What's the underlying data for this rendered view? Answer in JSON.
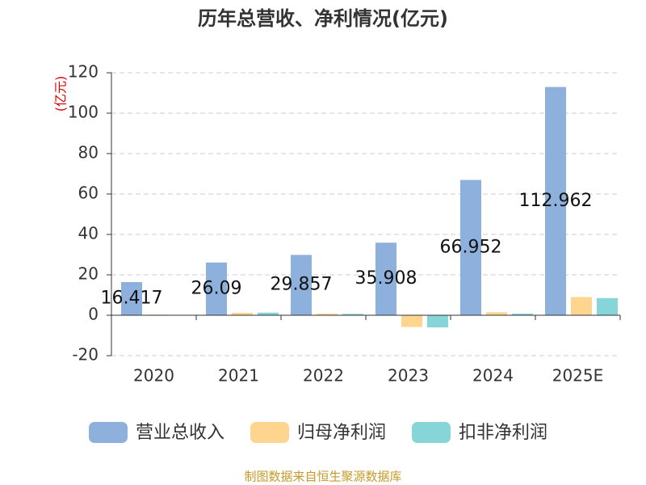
{
  "chart_data": {
    "type": "bar",
    "title": "历年总营收、净利情况(亿元)",
    "y_label": "(亿元)",
    "source": "制图数据来自恒生聚源数据库",
    "categories": [
      "2020",
      "2021",
      "2022",
      "2023",
      "2024",
      "2025E"
    ],
    "series": [
      {
        "name": "营业总收入",
        "color": "#8eb0dc",
        "values": [
          16.417,
          26.09,
          29.857,
          35.908,
          66.952,
          112.962
        ]
      },
      {
        "name": "归母净利润",
        "color": "#fdd58f",
        "values": [
          0.3,
          1.2,
          0.8,
          -5.8,
          1.5,
          9.0
        ]
      },
      {
        "name": "扣非净利润",
        "color": "#86d5d9",
        "values": [
          0.2,
          1.3,
          0.7,
          -6.0,
          0.8,
          8.5
        ]
      }
    ],
    "labeled_series": 0,
    "ylim": [
      -20,
      120
    ],
    "yticks": [
      -20,
      0,
      20,
      40,
      60,
      80,
      100,
      120
    ],
    "grid": true
  }
}
